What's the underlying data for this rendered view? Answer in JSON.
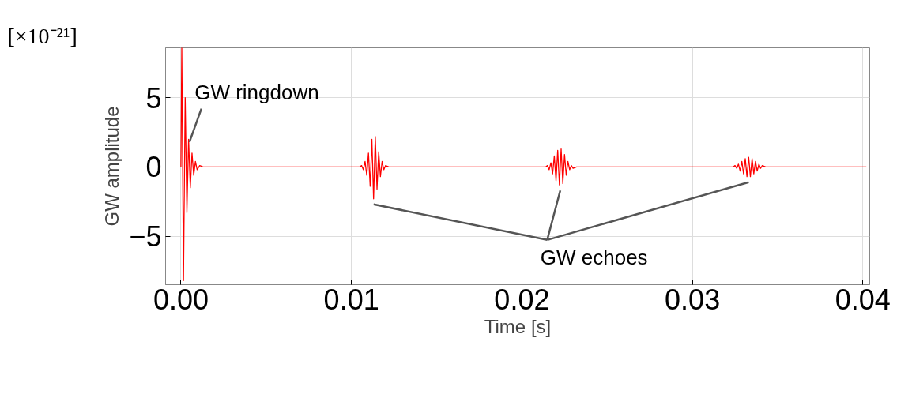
{
  "chart_data": {
    "type": "line",
    "xlabel": "Time [s]",
    "ylabel": "GW amplitude",
    "xlim": [
      -0.0009,
      0.0404
    ],
    "ylim": [
      -8.5,
      8.6
    ],
    "xticks": [
      {
        "value": 0,
        "label": "0.00"
      },
      {
        "value": 0.01,
        "label": "0.01"
      },
      {
        "value": 0.02,
        "label": "0.02"
      },
      {
        "value": 0.03,
        "label": "0.03"
      },
      {
        "value": 0.04,
        "label": "0.04"
      }
    ],
    "yticks": [
      {
        "value": -5,
        "label": "−5"
      },
      0,
      5
    ],
    "grid": true,
    "marker": "none",
    "line_style": "solid",
    "annotations": [
      "[×10⁻²¹]",
      {
        "text": "GW ringdown",
        "x": 0.0005,
        "y": 1.8
      },
      "GW echoes"
    ],
    "series": [
      {
        "color": "#ff0000",
        "x": [
          0,
          5e-05,
          0.00015,
          0.00025,
          0.00035,
          0.00045,
          0.00055,
          0.00065,
          0.00075,
          0.00085,
          0.00095,
          0.0011,
          0.0013,
          0.0105,
          0.0106,
          0.0107,
          0.0108,
          0.0109,
          0.011,
          0.0111,
          0.0112,
          0.0113,
          0.0114,
          0.0115,
          0.0116,
          0.0117,
          0.0118,
          0.0119,
          0.012,
          0.0122,
          0.0214,
          0.0215,
          0.0216,
          0.0217,
          0.0218,
          0.0219,
          0.022,
          0.0221,
          0.0222,
          0.0223,
          0.0224,
          0.0225,
          0.0226,
          0.0227,
          0.0228,
          0.0229,
          0.023,
          0.0232,
          0.0324,
          0.0325,
          0.0326,
          0.0327,
          0.0328,
          0.0329,
          0.033,
          0.0331,
          0.0332,
          0.0333,
          0.0334,
          0.0335,
          0.0336,
          0.0337,
          0.0338,
          0.0339,
          0.034,
          0.0341,
          0.0343,
          0.0402
        ],
        "values": [
          0,
          8.6,
          -8.2,
          5.0,
          -3.3,
          2.0,
          -1.5,
          1.0,
          -0.6,
          0.4,
          -0.2,
          0.1,
          0,
          0,
          0.1,
          -0.2,
          0.4,
          -0.6,
          1.0,
          -1.4,
          2.0,
          -2.3,
          2.2,
          -1.6,
          1.1,
          -0.7,
          0.4,
          -0.2,
          0.1,
          0,
          0,
          0.1,
          -0.2,
          0.3,
          -0.5,
          0.8,
          -1.0,
          1.2,
          -1.3,
          1.3,
          -1.2,
          0.9,
          -0.6,
          0.4,
          -0.2,
          0.1,
          -0.1,
          0,
          0,
          0.1,
          -0.1,
          0.2,
          -0.3,
          0.4,
          -0.5,
          0.6,
          -0.7,
          0.7,
          -0.7,
          0.6,
          -0.5,
          0.4,
          -0.3,
          0.2,
          -0.1,
          0.1,
          0,
          0
        ]
      }
    ]
  }
}
